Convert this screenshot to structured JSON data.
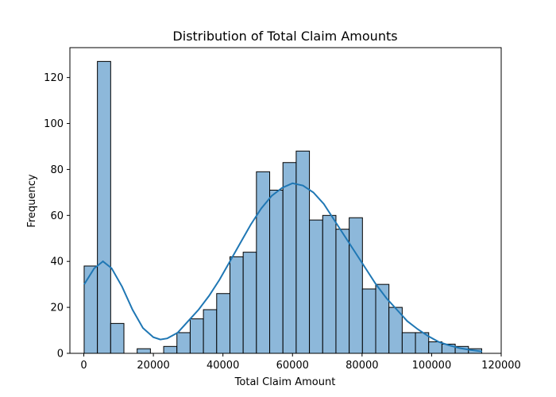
{
  "chart_data": {
    "type": "bar",
    "subtype": "histogram-with-kde",
    "title": "Distribution of Total Claim Amounts",
    "xlabel": "Total Claim Amount",
    "ylabel": "Frequency",
    "xlim": [
      -4000,
      120000
    ],
    "ylim": [
      0,
      133
    ],
    "xticks": [
      0,
      20000,
      40000,
      60000,
      80000,
      100000,
      120000
    ],
    "yticks": [
      0,
      20,
      40,
      60,
      80,
      100,
      120
    ],
    "bin_start": 100,
    "bin_width": 3810,
    "counts": [
      38,
      127,
      13,
      0,
      2,
      0,
      3,
      9,
      15,
      19,
      26,
      42,
      44,
      79,
      71,
      83,
      88,
      58,
      60,
      54,
      59,
      28,
      30,
      20,
      9,
      9,
      5,
      4,
      3,
      2
    ],
    "kde": {
      "x": [
        100,
        3000,
        5500,
        8000,
        11000,
        14000,
        17000,
        20000,
        22000,
        24000,
        27000,
        30000,
        33000,
        36000,
        39000,
        42000,
        45000,
        48000,
        51000,
        54000,
        57000,
        60000,
        63000,
        66000,
        69000,
        72000,
        75000,
        78000,
        81000,
        84000,
        87000,
        90000,
        93000,
        96000,
        99000,
        102000,
        105000,
        108000,
        111000,
        114500
      ],
      "y": [
        30,
        37,
        40,
        37,
        29,
        19,
        11,
        7,
        6,
        6.5,
        9,
        14,
        19,
        25,
        32,
        40,
        48,
        56,
        63,
        68.5,
        72,
        74,
        73,
        70,
        65,
        58,
        51,
        44,
        37,
        30,
        24,
        19,
        14,
        10.5,
        7.5,
        5,
        3.5,
        2.3,
        1.5,
        0.8
      ]
    },
    "colors": {
      "bar": "#8db8da",
      "kde": "#1f77b4"
    },
    "grid": false,
    "legend": "none"
  }
}
